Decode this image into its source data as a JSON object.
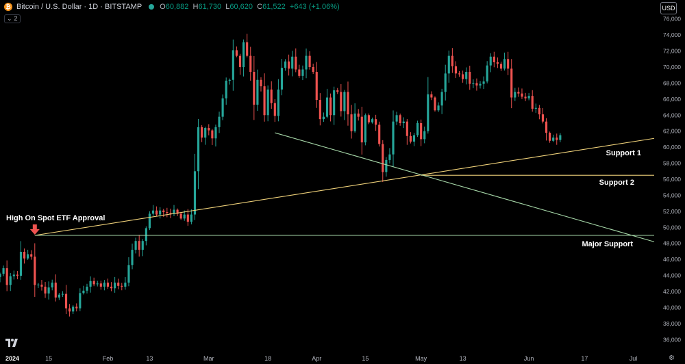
{
  "header": {
    "coin_glyph": "₿",
    "title": "Bitcoin / U.S. Dollar · 1D · BITSTAMP",
    "ohlc": [
      {
        "key": "O",
        "value": "60,882"
      },
      {
        "key": "H",
        "value": "61,730"
      },
      {
        "key": "L",
        "value": "60,620"
      },
      {
        "key": "C",
        "value": "61,522"
      }
    ],
    "change": "+643 (+1.06%)",
    "indicator_count": "2",
    "currency": "USD"
  },
  "colors": {
    "up": "#26a69a",
    "down": "#ef5350",
    "support_line": "#f0d27a",
    "green_line": "#a5d6a7",
    "arrow": "#ef5350",
    "grid_text": "#b2b5be"
  },
  "chart_data": {
    "type": "candlestick",
    "title": "",
    "xlabel": "",
    "ylabel": "",
    "ylim": [
      35000,
      77000
    ],
    "y_ticks": [
      36000,
      38000,
      40000,
      42000,
      44000,
      46000,
      48000,
      50000,
      52000,
      54000,
      56000,
      58000,
      60000,
      62000,
      64000,
      66000,
      68000,
      70000,
      72000,
      74000,
      76000
    ],
    "y_tick_labels": [
      "36,000",
      "38,000",
      "40,000",
      "42,000",
      "44,000",
      "46,000",
      "48,000",
      "50,000",
      "52,000",
      "54,000",
      "56,000",
      "58,000",
      "60,000",
      "62,000",
      "64,000",
      "66,000",
      "68,000",
      "70,000",
      "72,000",
      "74,000",
      "76,000"
    ],
    "x_range": [
      "2024-01-01",
      "2024-07-07"
    ],
    "x_ticks": [
      {
        "date": "2024-01-01",
        "label": "2024"
      },
      {
        "date": "2024-01-15",
        "label": "15"
      },
      {
        "date": "2024-02-01",
        "label": "Feb"
      },
      {
        "date": "2024-02-13",
        "label": "13"
      },
      {
        "date": "2024-03-01",
        "label": "Mar"
      },
      {
        "date": "2024-03-18",
        "label": "18"
      },
      {
        "date": "2024-04-01",
        "label": "Apr"
      },
      {
        "date": "2024-04-15",
        "label": "15"
      },
      {
        "date": "2024-05-01",
        "label": "May"
      },
      {
        "date": "2024-05-13",
        "label": "13"
      },
      {
        "date": "2024-06-01",
        "label": "Jun"
      },
      {
        "date": "2024-06-17",
        "label": "17"
      },
      {
        "date": "2024-07-01",
        "label": "Jul"
      }
    ],
    "start_date": "2024-01-01",
    "closes": [
      44200,
      44900,
      42800,
      43900,
      44100,
      43960,
      46950,
      46120,
      46650,
      46350,
      42800,
      42850,
      42600,
      41750,
      42500,
      43100,
      41250,
      41600,
      41700,
      39900,
      39500,
      40100,
      39900,
      41800,
      42100,
      42600,
      43300,
      42900,
      43000,
      42600,
      43100,
      42600,
      42400,
      43100,
      42700,
      42600,
      43100,
      45300,
      47200,
      48300,
      47200,
      48300,
      49900,
      51700,
      52100,
      51600,
      52100,
      51900,
      51800,
      51700,
      52200,
      51700,
      51100,
      51600,
      50700,
      51600,
      57000,
      62500,
      61200,
      62400,
      62100,
      61100,
      62500,
      63800,
      66100,
      68300,
      68400,
      72100,
      71400,
      70000,
      73100,
      71400,
      69400,
      65300,
      68400,
      67600,
      64000,
      67200,
      65500,
      63900,
      67200,
      69900,
      70700,
      69800,
      71300,
      69700,
      68900,
      69700,
      71400,
      70000,
      69400,
      65900,
      63500,
      63800,
      66200,
      64000,
      67100,
      66900,
      64500,
      66900,
      64100,
      62000,
      64200,
      63800,
      60600,
      64000,
      63100,
      63500,
      62800,
      60400,
      56900,
      58400,
      59100,
      63200,
      64000,
      63000,
      63200,
      61400,
      60700,
      61500,
      63000,
      61000,
      62000,
      66600,
      66200,
      64600,
      65200,
      66900,
      69200,
      71400,
      70100,
      69200,
      69100,
      68500,
      69400,
      67900,
      68000,
      67700,
      67900,
      68200,
      70200,
      71300,
      70600,
      70400,
      69800,
      71000,
      69800,
      66200,
      66900,
      66700,
      66300,
      66100,
      66400,
      64800,
      64900,
      64100,
      63200,
      61800,
      60800,
      61200,
      60900,
      61500
    ],
    "annotations": [
      {
        "name": "spot-etf-label",
        "text": "High On Spot ETF Approval"
      },
      {
        "name": "support-1-label",
        "text": "Support 1"
      },
      {
        "name": "support-2-label",
        "text": "Support 2"
      },
      {
        "name": "major-support-label",
        "text": "Major Support"
      }
    ],
    "lines": [
      {
        "name": "rising-support-line",
        "color": "#f0d27a",
        "from": {
          "date": "2024-01-11",
          "price": 49000
        },
        "to": {
          "date": "2024-07-07",
          "price": 61100
        }
      },
      {
        "name": "support-2-line",
        "color": "#f0d27a",
        "from": {
          "date": "2024-05-01",
          "price": 56500
        },
        "to": {
          "date": "2024-07-07",
          "price": 56500
        }
      },
      {
        "name": "major-support-line",
        "color": "#a5d6a7",
        "from": {
          "date": "2024-01-11",
          "price": 49000
        },
        "to": {
          "date": "2024-07-07",
          "price": 49000
        }
      },
      {
        "name": "descending-line",
        "color": "#a5d6a7",
        "from": {
          "date": "2024-03-20",
          "price": 61800
        },
        "to": {
          "date": "2024-07-07",
          "price": 48200
        }
      }
    ]
  }
}
